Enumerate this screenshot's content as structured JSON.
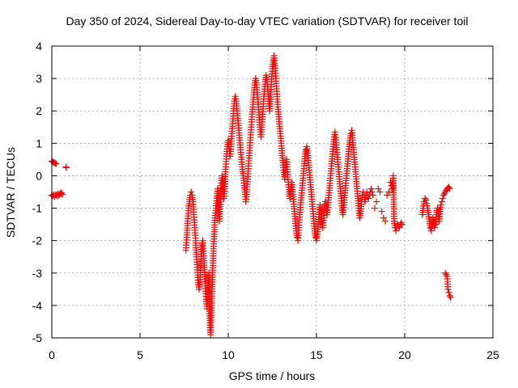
{
  "chart_data": {
    "type": "scatter",
    "title": "Day 350 of 2024, Sidereal Day-to-day VTEC variation (SDTVAR) for receiver toil",
    "xlabel": "GPS time / hours",
    "ylabel": "SDTVAR / TECUs",
    "xlim": [
      0,
      25
    ],
    "ylim": [
      -5,
      4
    ],
    "xticks": [
      0,
      5,
      10,
      15,
      20,
      25
    ],
    "yticks": [
      -5,
      -4,
      -3,
      -2,
      -1,
      0,
      1,
      2,
      3,
      4
    ],
    "xtick_labels": [
      "0",
      "5",
      "10",
      "15",
      "20",
      "25"
    ],
    "ytick_labels": [
      "-5",
      "-4",
      "-3",
      "-2",
      "-1",
      "0",
      "1",
      "2",
      "3",
      "4"
    ],
    "grid": true,
    "marker": "plus",
    "marker_color": "#ff0000",
    "series": [
      {
        "name": "SDTVAR",
        "points": [
          [
            0.0,
            0.45
          ],
          [
            0.05,
            0.43
          ],
          [
            0.1,
            0.42
          ],
          [
            0.15,
            0.4
          ],
          [
            0.2,
            0.38
          ],
          [
            0.25,
            0.37
          ],
          [
            0.0,
            -0.6
          ],
          [
            0.05,
            -0.62
          ],
          [
            0.1,
            -0.58
          ],
          [
            0.15,
            -0.65
          ],
          [
            0.2,
            -0.6
          ],
          [
            0.25,
            -0.58
          ],
          [
            0.3,
            -0.62
          ],
          [
            0.35,
            -0.55
          ],
          [
            0.4,
            -0.6
          ],
          [
            0.45,
            -0.57
          ],
          [
            0.5,
            -0.55
          ],
          [
            0.55,
            -0.52
          ],
          [
            0.6,
            -0.58
          ],
          [
            0.8,
            0.27
          ],
          [
            0.82,
            0.25
          ],
          [
            7.6,
            -2.3
          ],
          [
            7.65,
            -1.9
          ],
          [
            7.7,
            -1.4
          ],
          [
            7.75,
            -1.0
          ],
          [
            7.8,
            -0.8
          ],
          [
            7.85,
            -0.6
          ],
          [
            7.9,
            -0.5
          ],
          [
            7.95,
            -0.6
          ],
          [
            8.0,
            -0.8
          ],
          [
            8.05,
            -1.2
          ],
          [
            8.1,
            -1.6
          ],
          [
            8.15,
            -2.0
          ],
          [
            8.2,
            -2.5
          ],
          [
            8.25,
            -2.9
          ],
          [
            8.3,
            -3.3
          ],
          [
            8.35,
            -3.5
          ],
          [
            8.4,
            -3.2
          ],
          [
            8.45,
            -2.7
          ],
          [
            8.5,
            -2.2
          ],
          [
            8.55,
            -2.0
          ],
          [
            8.6,
            -2.4
          ],
          [
            8.65,
            -2.9
          ],
          [
            8.7,
            -3.4
          ],
          [
            8.75,
            -3.8
          ],
          [
            8.8,
            -4.1
          ],
          [
            8.85,
            -3.6
          ],
          [
            8.9,
            -3.0
          ],
          [
            8.95,
            -4.4
          ],
          [
            9.0,
            -4.9
          ],
          [
            9.05,
            -4.0
          ],
          [
            9.1,
            -3.2
          ],
          [
            9.15,
            -2.4
          ],
          [
            9.2,
            -1.8
          ],
          [
            9.25,
            -1.3
          ],
          [
            9.3,
            -1.0
          ],
          [
            9.35,
            -0.7
          ],
          [
            9.4,
            -0.4
          ],
          [
            9.45,
            -0.9
          ],
          [
            9.5,
            -1.4
          ],
          [
            9.55,
            -0.8
          ],
          [
            9.6,
            -0.3
          ],
          [
            9.65,
            0.0
          ],
          [
            9.7,
            -0.2
          ],
          [
            9.75,
            -0.7
          ],
          [
            9.8,
            -0.4
          ],
          [
            9.85,
            0.2
          ],
          [
            9.9,
            0.6
          ],
          [
            9.95,
            0.9
          ],
          [
            10.0,
            1.1
          ],
          [
            10.05,
            0.9
          ],
          [
            10.1,
            0.6
          ],
          [
            10.15,
            0.9
          ],
          [
            10.2,
            1.3
          ],
          [
            10.25,
            1.6
          ],
          [
            10.3,
            2.0
          ],
          [
            10.35,
            2.3
          ],
          [
            10.4,
            2.45
          ],
          [
            10.45,
            2.3
          ],
          [
            10.5,
            2.0
          ],
          [
            10.55,
            1.7
          ],
          [
            10.6,
            1.4
          ],
          [
            10.65,
            1.1
          ],
          [
            10.7,
            0.8
          ],
          [
            10.75,
            0.5
          ],
          [
            10.8,
            0.2
          ],
          [
            10.85,
            0.0
          ],
          [
            10.9,
            -0.3
          ],
          [
            10.95,
            -0.5
          ],
          [
            11.0,
            -0.8
          ],
          [
            11.05,
            -0.5
          ],
          [
            11.1,
            -0.1
          ],
          [
            11.15,
            0.3
          ],
          [
            11.2,
            0.7
          ],
          [
            11.25,
            1.1
          ],
          [
            11.3,
            1.5
          ],
          [
            11.35,
            1.9
          ],
          [
            11.4,
            2.2
          ],
          [
            11.45,
            2.5
          ],
          [
            11.5,
            2.8
          ],
          [
            11.55,
            3.0
          ],
          [
            11.6,
            2.8
          ],
          [
            11.65,
            2.5
          ],
          [
            11.7,
            2.2
          ],
          [
            11.75,
            1.8
          ],
          [
            11.8,
            1.5
          ],
          [
            11.85,
            1.2
          ],
          [
            11.9,
            1.5
          ],
          [
            11.95,
            1.9
          ],
          [
            12.0,
            2.3
          ],
          [
            12.05,
            2.6
          ],
          [
            12.1,
            2.9
          ],
          [
            12.15,
            3.1
          ],
          [
            12.2,
            2.9
          ],
          [
            12.25,
            2.6
          ],
          [
            12.3,
            2.3
          ],
          [
            12.35,
            2.0
          ],
          [
            12.4,
            2.5
          ],
          [
            12.45,
            2.9
          ],
          [
            12.5,
            3.3
          ],
          [
            12.55,
            3.5
          ],
          [
            12.6,
            3.7
          ],
          [
            12.65,
            3.4
          ],
          [
            12.7,
            3.0
          ],
          [
            12.75,
            2.6
          ],
          [
            12.8,
            2.2
          ],
          [
            12.85,
            1.9
          ],
          [
            12.9,
            1.6
          ],
          [
            12.95,
            1.3
          ],
          [
            13.0,
            1.0
          ],
          [
            13.05,
            0.7
          ],
          [
            13.1,
            0.4
          ],
          [
            13.15,
            0.1
          ],
          [
            13.2,
            -0.1
          ],
          [
            13.25,
            0.2
          ],
          [
            13.3,
            0.5
          ],
          [
            13.35,
            0.2
          ],
          [
            13.4,
            -0.2
          ],
          [
            13.45,
            -0.5
          ],
          [
            13.5,
            -0.7
          ],
          [
            13.55,
            -0.4
          ],
          [
            13.6,
            -0.2
          ],
          [
            13.65,
            -0.5
          ],
          [
            13.7,
            -0.8
          ],
          [
            13.75,
            -1.1
          ],
          [
            13.8,
            -1.4
          ],
          [
            13.85,
            -1.7
          ],
          [
            13.9,
            -1.9
          ],
          [
            13.95,
            -2.0
          ],
          [
            14.0,
            -1.6
          ],
          [
            14.05,
            -1.2
          ],
          [
            14.1,
            -0.9
          ],
          [
            14.15,
            -0.6
          ],
          [
            14.2,
            -0.3
          ],
          [
            14.25,
            0.0
          ],
          [
            14.3,
            0.3
          ],
          [
            14.35,
            0.6
          ],
          [
            14.4,
            0.8
          ],
          [
            14.45,
            0.9
          ],
          [
            14.5,
            0.7
          ],
          [
            14.55,
            0.4
          ],
          [
            14.6,
            0.1
          ],
          [
            14.65,
            -0.2
          ],
          [
            14.7,
            -0.5
          ],
          [
            14.75,
            -0.8
          ],
          [
            14.8,
            -1.1
          ],
          [
            14.85,
            -1.4
          ],
          [
            14.9,
            -1.7
          ],
          [
            14.95,
            -1.9
          ],
          [
            15.0,
            -2.0
          ],
          [
            15.05,
            -1.8
          ],
          [
            15.1,
            -1.5
          ],
          [
            15.15,
            -1.2
          ],
          [
            15.2,
            -0.9
          ],
          [
            15.25,
            -1.1
          ],
          [
            15.3,
            -1.4
          ],
          [
            15.35,
            -1.6
          ],
          [
            15.4,
            -1.3
          ],
          [
            15.45,
            -1.0
          ],
          [
            15.5,
            -0.8
          ],
          [
            15.55,
            -1.0
          ],
          [
            15.6,
            -1.2
          ],
          [
            15.65,
            -0.9
          ],
          [
            15.7,
            -0.6
          ],
          [
            15.75,
            -0.3
          ],
          [
            15.8,
            0.0
          ],
          [
            15.85,
            0.3
          ],
          [
            15.9,
            0.6
          ],
          [
            15.95,
            0.9
          ],
          [
            16.0,
            1.2
          ],
          [
            16.05,
            1.35
          ],
          [
            16.1,
            1.1
          ],
          [
            16.15,
            0.8
          ],
          [
            16.2,
            0.5
          ],
          [
            16.25,
            0.2
          ],
          [
            16.3,
            -0.1
          ],
          [
            16.35,
            -0.4
          ],
          [
            16.4,
            -0.7
          ],
          [
            16.45,
            -1.0
          ],
          [
            16.5,
            -1.2
          ],
          [
            16.55,
            -0.9
          ],
          [
            16.6,
            -0.6
          ],
          [
            16.65,
            -0.3
          ],
          [
            16.7,
            0.0
          ],
          [
            16.75,
            0.3
          ],
          [
            16.8,
            0.6
          ],
          [
            16.85,
            0.9
          ],
          [
            16.9,
            1.1
          ],
          [
            16.95,
            1.3
          ],
          [
            17.0,
            1.4
          ],
          [
            17.05,
            1.1
          ],
          [
            17.1,
            0.8
          ],
          [
            17.15,
            0.5
          ],
          [
            17.2,
            0.2
          ],
          [
            17.25,
            -0.1
          ],
          [
            17.3,
            -0.4
          ],
          [
            17.35,
            -0.7
          ],
          [
            17.4,
            -1.0
          ],
          [
            17.45,
            -1.3
          ],
          [
            17.5,
            -1.1
          ],
          [
            17.55,
            -0.8
          ],
          [
            17.6,
            -0.6
          ],
          [
            17.65,
            -0.5
          ],
          [
            17.7,
            -0.6
          ],
          [
            17.75,
            -0.8
          ],
          [
            17.8,
            -0.6
          ],
          [
            17.85,
            -0.5
          ],
          [
            17.9,
            -0.6
          ],
          [
            17.95,
            -0.7
          ],
          [
            18.0,
            -0.6
          ],
          [
            18.05,
            -0.5
          ],
          [
            18.1,
            -0.4
          ],
          [
            18.15,
            -0.5
          ],
          [
            18.2,
            -0.6
          ],
          [
            18.3,
            -1.0
          ],
          [
            18.4,
            -0.8
          ],
          [
            18.5,
            -0.4
          ],
          [
            18.6,
            -0.5
          ],
          [
            18.7,
            -1.1
          ],
          [
            18.8,
            -1.3
          ],
          [
            18.9,
            -1.4
          ],
          [
            19.0,
            -0.6
          ],
          [
            19.1,
            -0.5
          ],
          [
            19.2,
            -0.2
          ],
          [
            19.25,
            -0.3
          ],
          [
            19.3,
            -0.4
          ],
          [
            19.35,
            0.0
          ],
          [
            19.4,
            -1.4
          ],
          [
            19.45,
            -1.6
          ],
          [
            19.5,
            -1.7
          ],
          [
            19.55,
            -1.6
          ],
          [
            19.6,
            -1.5
          ],
          [
            19.65,
            -1.55
          ],
          [
            19.7,
            -1.6
          ],
          [
            19.75,
            -1.5
          ],
          [
            19.8,
            -1.45
          ],
          [
            19.85,
            -1.5
          ],
          [
            21.0,
            -1.2
          ],
          [
            21.05,
            -1.0
          ],
          [
            21.1,
            -0.8
          ],
          [
            21.15,
            -0.7
          ],
          [
            21.2,
            -0.75
          ],
          [
            21.25,
            -0.85
          ],
          [
            21.3,
            -1.0
          ],
          [
            21.35,
            -1.2
          ],
          [
            21.4,
            -1.4
          ],
          [
            21.45,
            -1.6
          ],
          [
            21.5,
            -1.7
          ],
          [
            21.55,
            -1.5
          ],
          [
            21.6,
            -1.3
          ],
          [
            21.65,
            -1.4
          ],
          [
            21.7,
            -1.6
          ],
          [
            21.75,
            -1.5
          ],
          [
            21.8,
            -1.2
          ],
          [
            21.85,
            -1.0
          ],
          [
            21.9,
            -1.2
          ],
          [
            21.95,
            -1.4
          ],
          [
            22.0,
            -1.1
          ],
          [
            22.05,
            -0.9
          ],
          [
            22.1,
            -0.8
          ],
          [
            22.15,
            -0.7
          ],
          [
            22.2,
            -0.6
          ],
          [
            22.25,
            -0.55
          ],
          [
            22.3,
            -0.5
          ],
          [
            22.35,
            -0.45
          ],
          [
            22.4,
            -0.4
          ],
          [
            22.45,
            -0.38
          ],
          [
            22.5,
            -0.35
          ],
          [
            22.55,
            -0.4
          ],
          [
            22.3,
            -3.0
          ],
          [
            22.35,
            -3.05
          ],
          [
            22.4,
            -3.1
          ],
          [
            22.45,
            -3.5
          ],
          [
            22.5,
            -3.6
          ],
          [
            22.55,
            -3.7
          ],
          [
            22.6,
            -3.75
          ]
        ]
      }
    ]
  }
}
